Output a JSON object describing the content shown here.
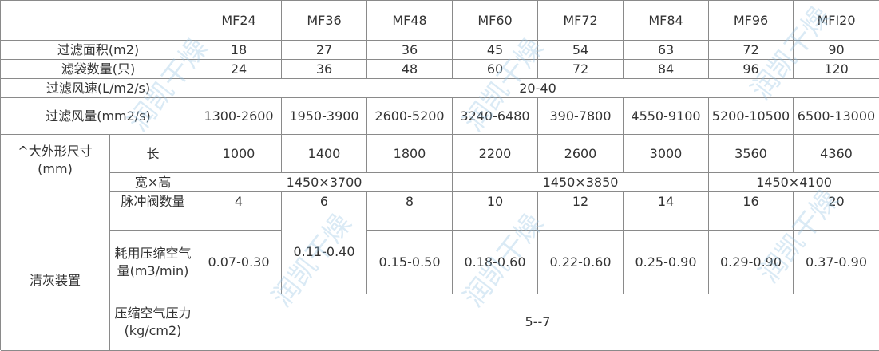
{
  "table": {
    "columns": [
      "MF24",
      "MF36",
      "MF48",
      "MF60",
      "MF72",
      "MF84",
      "MF96",
      "MFI20"
    ],
    "area": {
      "label": "过滤面积(m2)",
      "values": [
        18,
        27,
        36,
        45,
        54,
        63,
        72,
        90
      ]
    },
    "bags": {
      "label": "滤袋数量(只)",
      "values": [
        24,
        36,
        48,
        60,
        72,
        84,
        96,
        120
      ]
    },
    "speed": {
      "label": "过滤风速(L/m2/s)",
      "value": "20-40"
    },
    "volume": {
      "label": "过滤风量(mm2/s)",
      "values": [
        "1300-2600",
        "1950-3900",
        "2600-5200",
        "3240-6480",
        "390-7800",
        "4550-9100",
        "5200-10500",
        "6500-13000"
      ]
    },
    "size": {
      "label": "^大外形尺寸(mm)",
      "length": {
        "label": "长",
        "values": [
          1000,
          1400,
          1800,
          2200,
          2600,
          3000,
          3560,
          4360
        ]
      },
      "wh": {
        "label": "宽×高",
        "values": [
          "1450×3700",
          "1450×3850",
          "1450×4100"
        ]
      }
    },
    "valves": {
      "label": "脉冲阀数量",
      "values": [
        4,
        6,
        8,
        10,
        12,
        14,
        16,
        20
      ]
    },
    "cleaning": {
      "label": "清灰装置",
      "air": {
        "label": "耗用压缩空气量(m3/min)",
        "values": [
          "0.07-0.30",
          "0.11-0.40",
          "0.15-0.50",
          "0.18-0.60",
          "0.22-0.60",
          "0.25-0.90",
          "0.29-0.90",
          "0.37-0.90"
        ]
      },
      "pressure": {
        "label": "压缩空气压力(kg/cm2)",
        "value": "5--7"
      }
    }
  },
  "watermark": "润凯干燥"
}
